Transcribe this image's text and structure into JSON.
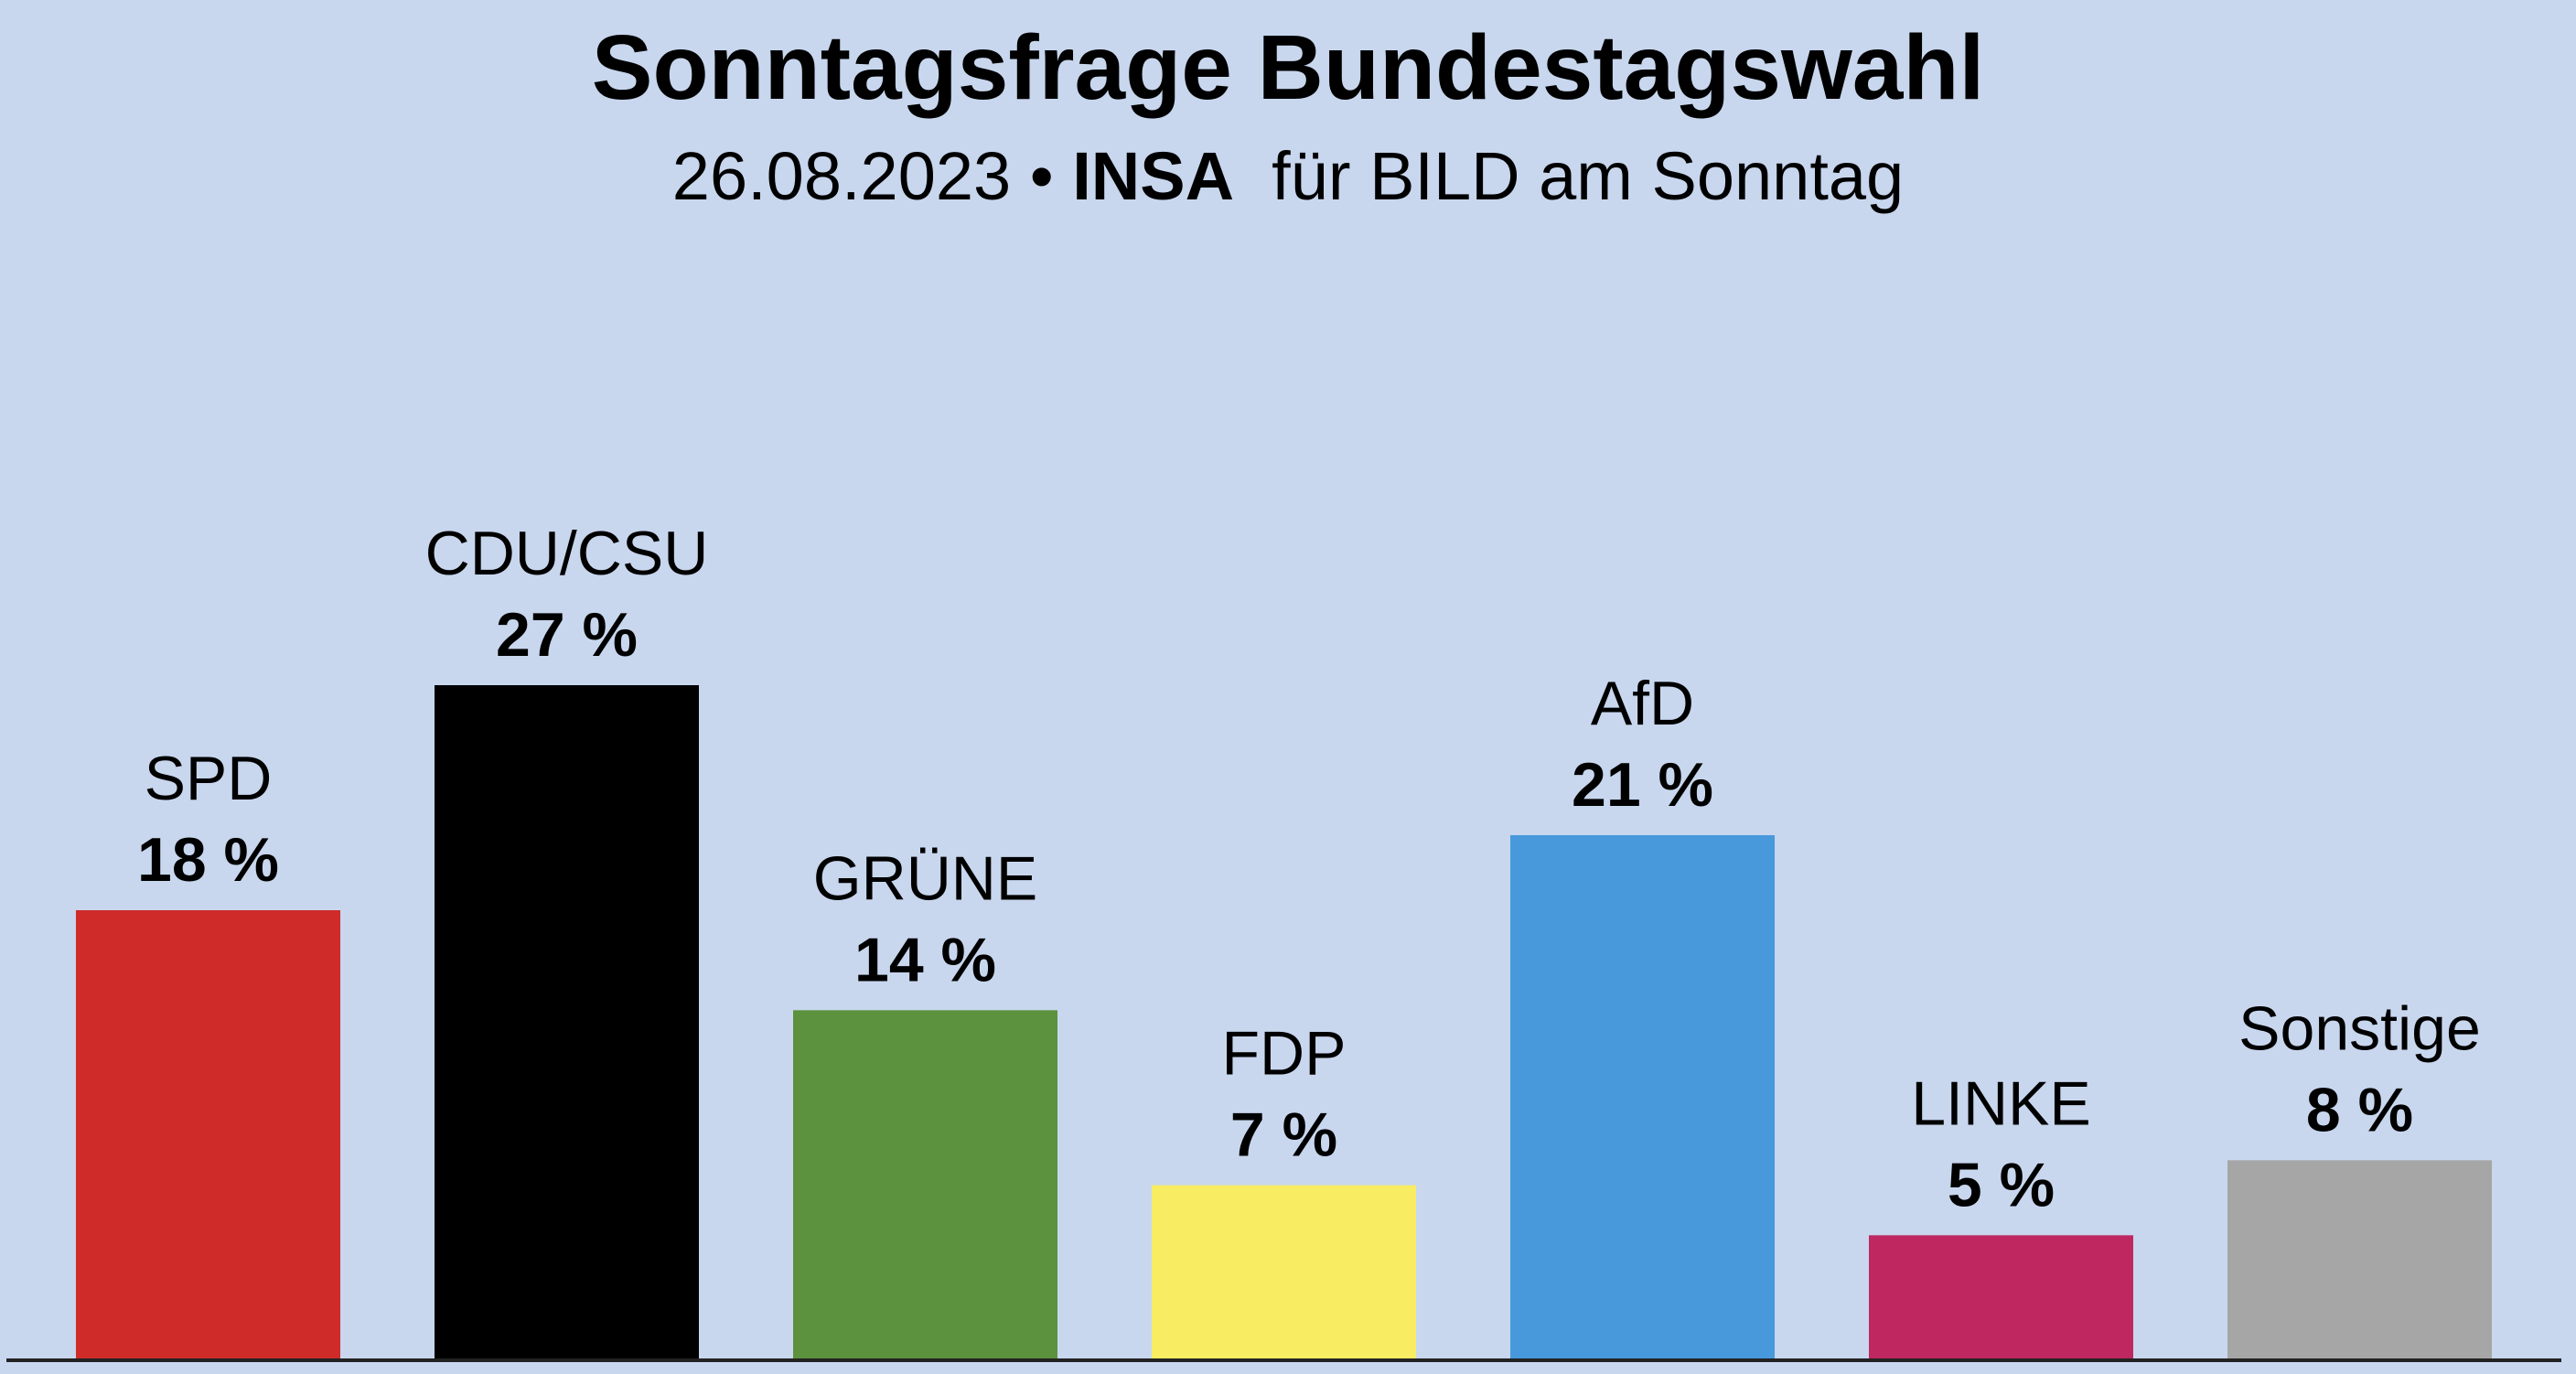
{
  "header": {
    "title": "Sonntagsfrage Bundestagswahl",
    "date": "26.08.2023",
    "separator": "•",
    "institute": "INSA",
    "client": "für BILD am Sonntag"
  },
  "chart_data": {
    "type": "bar",
    "title": "Sonntagsfrage Bundestagswahl",
    "subtitle": "26.08.2023 • INSA für BILD am Sonntag",
    "xlabel": "",
    "ylabel": "",
    "unit": "%",
    "ylim": [
      0,
      27
    ],
    "grid": false,
    "legend": "none",
    "categories": [
      "SPD",
      "CDU/CSU",
      "GRÜNE",
      "FDP",
      "AfD",
      "LINKE",
      "Sonstige"
    ],
    "values": [
      18,
      27,
      14,
      7,
      21,
      5,
      8
    ],
    "value_labels": [
      "18 %",
      "27 %",
      "14 %",
      "7 %",
      "21 %",
      "5 %",
      "8 %"
    ],
    "colors": [
      "#cf2b29",
      "#000000",
      "#5c913d",
      "#f8ec62",
      "#4799db",
      "#be2760",
      "#a6a6a6"
    ]
  }
}
